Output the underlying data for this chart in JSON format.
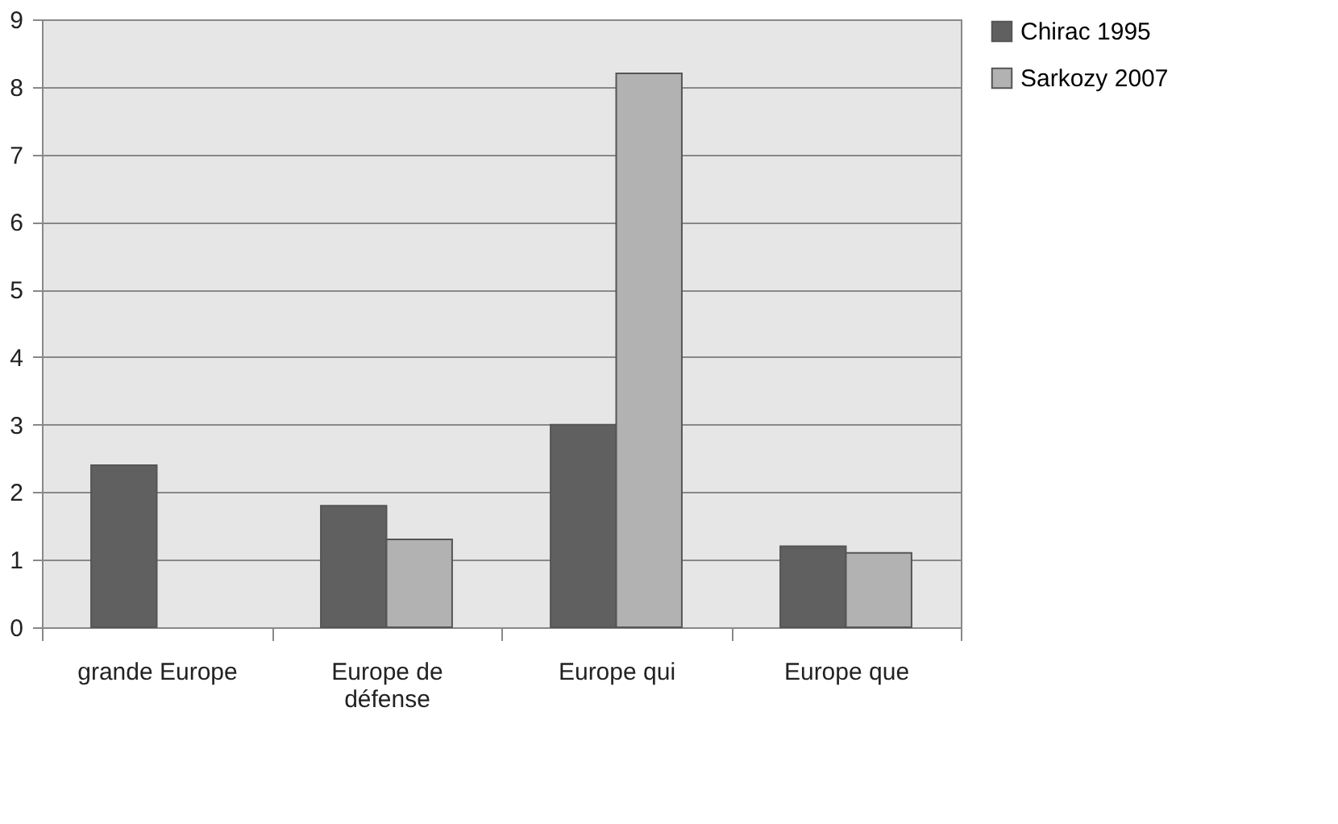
{
  "chart_data": {
    "type": "bar",
    "categories": [
      "grande Europe",
      "Europe de défense",
      "Europe qui",
      "Europe que"
    ],
    "series": [
      {
        "name": "Chirac 1995",
        "color": "#606060",
        "values": [
          2.4,
          1.8,
          3.0,
          1.2
        ]
      },
      {
        "name": "Sarkozy 2007",
        "color": "#b2b2b2",
        "values": [
          null,
          1.3,
          8.2,
          1.1
        ]
      }
    ],
    "ylim": [
      0,
      9
    ],
    "yticks": [
      0,
      1,
      2,
      3,
      4,
      5,
      6,
      7,
      8,
      9
    ],
    "grid": "y",
    "legend": "right"
  }
}
